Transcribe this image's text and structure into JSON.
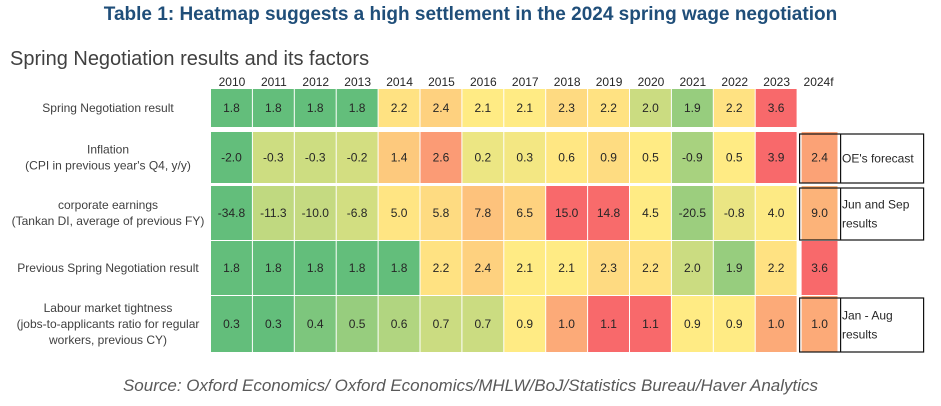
{
  "title": "Table 1: Heatmap suggests a high settlement in the 2024 spring wage negotiation",
  "source": "Source: Oxford Economics/ Oxford Economics/MHLW/BoJ/Statistics Bureau/Haver Analytics",
  "chart_data": {
    "type": "heatmap",
    "title": "Spring Negotiation results and its factors",
    "columns": [
      "2010",
      "2011",
      "2012",
      "2013",
      "2014",
      "2015",
      "2016",
      "2017",
      "2018",
      "2019",
      "2020",
      "2021",
      "2022",
      "2023",
      "2024f"
    ],
    "rows": [
      {
        "label_lines": [
          "Spring Negotiation result"
        ],
        "values": [
          1.8,
          1.8,
          1.8,
          1.8,
          2.2,
          2.4,
          2.1,
          2.1,
          2.3,
          2.2,
          2.0,
          1.9,
          2.2,
          3.6,
          null
        ],
        "display": [
          "1.8",
          "1.8",
          "1.8",
          "1.8",
          "2.2",
          "2.4",
          "2.1",
          "2.1",
          "2.3",
          "2.2",
          "2.0",
          "1.9",
          "2.2",
          "3.6",
          ""
        ],
        "note_lines": []
      },
      {
        "label_lines": [
          "Inflation",
          "(CPI in previous year's Q4, y/y)"
        ],
        "values": [
          -2.0,
          -0.3,
          -0.3,
          -0.2,
          1.4,
          2.6,
          0.2,
          0.3,
          0.6,
          0.9,
          0.5,
          -0.9,
          0.5,
          3.9,
          2.4
        ],
        "display": [
          "-2.0",
          "-0.3",
          "-0.3",
          "-0.2",
          "1.4",
          "2.6",
          "0.2",
          "0.3",
          "0.6",
          "0.9",
          "0.5",
          "-0.9",
          "0.5",
          "3.9",
          "2.4"
        ],
        "note_lines": [
          "OE's forecast"
        ]
      },
      {
        "label_lines": [
          "corporate earnings",
          "(Tankan DI, average of previous FY)"
        ],
        "values": [
          -34.8,
          -11.3,
          -10.0,
          -6.8,
          5.0,
          5.8,
          7.8,
          6.5,
          15.0,
          14.8,
          4.5,
          -20.5,
          -0.8,
          4.0,
          9.0
        ],
        "display": [
          "-34.8",
          "-11.3",
          "-10.0",
          "-6.8",
          "5.0",
          "5.8",
          "7.8",
          "6.5",
          "15.0",
          "14.8",
          "4.5",
          "-20.5",
          "-0.8",
          "4.0",
          "9.0"
        ],
        "note_lines": [
          "Jun and Sep",
          "results"
        ]
      },
      {
        "label_lines": [
          "Previous Spring Negotiation result"
        ],
        "values": [
          1.8,
          1.8,
          1.8,
          1.8,
          1.8,
          2.2,
          2.4,
          2.1,
          2.1,
          2.3,
          2.2,
          2.0,
          1.9,
          2.2,
          3.6
        ],
        "display": [
          "1.8",
          "1.8",
          "1.8",
          "1.8",
          "1.8",
          "2.2",
          "2.4",
          "2.1",
          "2.1",
          "2.3",
          "2.2",
          "2.0",
          "1.9",
          "2.2",
          "3.6"
        ],
        "note_lines": []
      },
      {
        "label_lines": [
          "Labour market tightness",
          "(jobs-to-applicants ratio for regular",
          "workers, previous CY)"
        ],
        "values": [
          0.3,
          0.3,
          0.4,
          0.5,
          0.6,
          0.7,
          0.7,
          0.9,
          1.0,
          1.1,
          1.1,
          0.9,
          0.9,
          1.0,
          1.0
        ],
        "display": [
          "0.3",
          "0.3",
          "0.4",
          "0.5",
          "0.6",
          "0.7",
          "0.7",
          "0.9",
          "1.0",
          "1.1",
          "1.1",
          "0.9",
          "0.9",
          "1.0",
          "1.0"
        ],
        "note_lines": [
          "Jan - Aug",
          "results"
        ]
      }
    ],
    "color_scale": {
      "low": "#63be7b",
      "mid": "#ffeb84",
      "high": "#f8696b"
    },
    "grid": false,
    "legend": "none"
  }
}
